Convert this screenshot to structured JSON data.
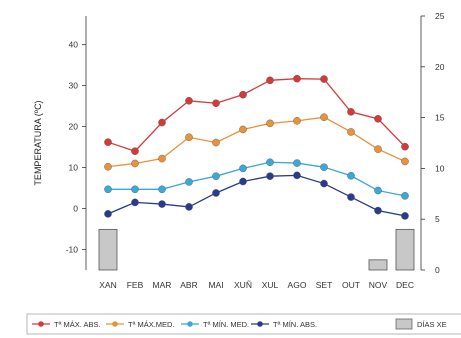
{
  "chart_data": {
    "type": "line",
    "categories": [
      "XAN",
      "FEB",
      "MAR",
      "ABR",
      "MAI",
      "XUÑ",
      "XUL",
      "AGO",
      "SET",
      "OUT",
      "NOV",
      "DEC"
    ],
    "ylabel": "TEMPERATURA (ºC)",
    "ylim": [
      -15,
      47
    ],
    "yticks": [
      -10,
      0,
      10,
      20,
      30,
      40
    ],
    "y2lim": [
      0,
      25
    ],
    "y2ticks": [
      0,
      5,
      10,
      15,
      20,
      25
    ],
    "series": [
      {
        "name": "Tª MÁX. ABS.",
        "color": "#d43a3a",
        "values": [
          16.2,
          14.0,
          21.0,
          26.3,
          25.7,
          27.8,
          31.3,
          31.7,
          31.6,
          23.6,
          21.9,
          15.1
        ]
      },
      {
        "name": "Tª MÁX.MED.",
        "color": "#e8923a",
        "values": [
          10.2,
          11.0,
          12.2,
          17.4,
          16.1,
          19.3,
          20.8,
          21.4,
          22.3,
          18.7,
          14.5,
          11.5
        ]
      },
      {
        "name": "Tª MÍN. MED.",
        "color": "#3aa8d8",
        "values": [
          4.7,
          4.7,
          4.7,
          6.5,
          7.9,
          9.8,
          11.3,
          11.1,
          10.1,
          8.0,
          4.4,
          3.1
        ]
      },
      {
        "name": "Tª MÍN. ABS.",
        "color": "#2a3a8c",
        "values": [
          -1.3,
          1.5,
          1.1,
          0.4,
          3.8,
          6.6,
          7.9,
          8.1,
          6.1,
          2.8,
          -0.5,
          -1.8
        ]
      }
    ],
    "bars": {
      "name": "DÍAS XE",
      "axis": "right",
      "color": "#c8c8c8",
      "values": [
        4,
        0,
        0,
        0,
        0,
        0,
        0,
        0,
        0,
        0,
        1,
        4
      ]
    },
    "grid": false,
    "legend": "bottom"
  }
}
